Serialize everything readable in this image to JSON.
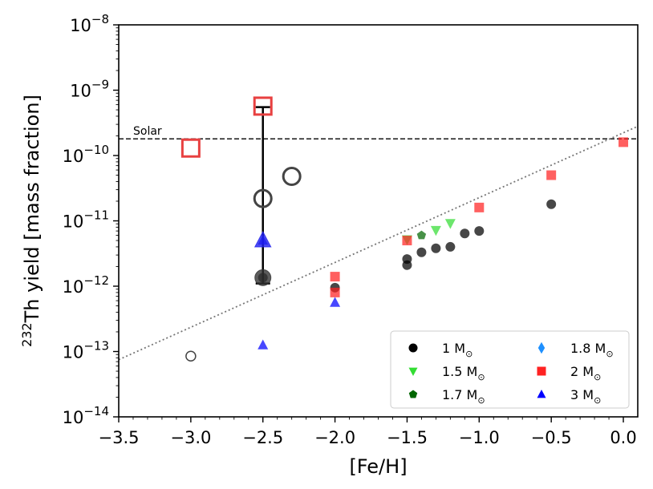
{
  "chart_data": {
    "type": "scatter",
    "x_scale": "linear",
    "y_scale": "log",
    "xlim": [
      -3.5,
      0.1
    ],
    "ylim": [
      1e-14,
      1e-08
    ],
    "xlabel": "[Fe/H]",
    "ylabel_superscript": "232",
    "ylabel_text": "Th yield [mass fraction]",
    "x_ticks": [
      {
        "value": -3.5,
        "label": "−3.5"
      },
      {
        "value": -3.0,
        "label": "−3.0"
      },
      {
        "value": -2.5,
        "label": "−2.5"
      },
      {
        "value": -2.0,
        "label": "−2.0"
      },
      {
        "value": -1.5,
        "label": "−1.5"
      },
      {
        "value": -1.0,
        "label": "−1.0"
      },
      {
        "value": -0.5,
        "label": "−0.5"
      },
      {
        "value": 0.0,
        "label": "0.0"
      }
    ],
    "y_ticks": [
      {
        "exp": -14,
        "base": "10",
        "power": "−14"
      },
      {
        "exp": -13,
        "base": "10",
        "power": "−13"
      },
      {
        "exp": -12,
        "base": "10",
        "power": "−12"
      },
      {
        "exp": -11,
        "base": "10",
        "power": "−11"
      },
      {
        "exp": -10,
        "base": "10",
        "power": "−10"
      },
      {
        "exp": -9,
        "base": "10",
        "power": "−9"
      },
      {
        "exp": -8,
        "base": "10",
        "power": "−8"
      }
    ],
    "solar": {
      "value": 1.8e-10,
      "label": "Solar"
    },
    "trend_line": {
      "points": [
        [
          -3.5,
          7.5e-14
        ],
        [
          0.1,
          2.8e-10
        ]
      ],
      "style": "dotted"
    },
    "error_bar": {
      "x": -2.5,
      "y_low": 1.1e-12,
      "y_high": 5.5e-10
    },
    "series": [
      {
        "name": "1 M",
        "color": "#000000",
        "marker": "circle",
        "points": [
          [
            -2.5,
            1.35e-12
          ],
          [
            -2.0,
            9.5e-13
          ],
          [
            -1.5,
            2.1e-12
          ],
          [
            -1.5,
            2.6e-12
          ],
          [
            -1.4,
            3.3e-12
          ],
          [
            -1.3,
            3.8e-12
          ],
          [
            -1.2,
            4e-12
          ],
          [
            -1.1,
            6.4e-12
          ],
          [
            -1.0,
            7e-12
          ],
          [
            -0.5,
            1.8e-11
          ]
        ]
      },
      {
        "name": "1.5 M",
        "color": "#33dd33",
        "marker": "triangle-down",
        "points": [
          [
            -1.5,
            5.2e-12
          ],
          [
            -1.3,
            7.2e-12
          ],
          [
            -1.2,
            9.2e-12
          ]
        ]
      },
      {
        "name": "1.7 M",
        "color": "#006600",
        "marker": "pentagon",
        "points": [
          [
            -1.4,
            6e-12
          ]
        ]
      },
      {
        "name": "1.8 M",
        "color": "#1e90ff",
        "marker": "diamond",
        "points": []
      },
      {
        "name": "2 M",
        "color": "#ff2222",
        "marker": "square",
        "points": [
          [
            -2.0,
            1.4e-12
          ],
          [
            -2.0,
            8e-13
          ],
          [
            -1.5,
            5e-12
          ],
          [
            -1.0,
            1.6e-11
          ],
          [
            -0.5,
            5e-11
          ],
          [
            0.0,
            1.6e-10
          ]
        ]
      },
      {
        "name": "3 M",
        "color": "#0000ff",
        "marker": "triangle-up",
        "points": [
          [
            -2.5,
            1.25e-13
          ],
          [
            -2.5,
            5e-12
          ],
          [
            -2.0,
            5.6e-13
          ]
        ]
      }
    ],
    "open_markers": [
      {
        "x": -3.0,
        "y": 1.3e-10,
        "marker": "square",
        "color": "#e84040",
        "size": "large"
      },
      {
        "x": -2.5,
        "y": 5.7e-10,
        "marker": "square",
        "color": "#e84040",
        "size": "large"
      },
      {
        "x": -2.5,
        "y": 2.2e-11,
        "marker": "circle",
        "color": "#444444",
        "size": "large"
      },
      {
        "x": -2.3,
        "y": 4.8e-11,
        "marker": "circle",
        "color": "#444444",
        "size": "large"
      },
      {
        "x": -3.0,
        "y": 8.5e-14,
        "marker": "circle",
        "color": "#444444",
        "size": "small"
      }
    ],
    "highlight_markers": [
      {
        "x": -2.5,
        "y": 1.35e-12,
        "marker": "circle",
        "color": "#333333"
      },
      {
        "x": -2.5,
        "y": 5e-12,
        "marker": "triangle-up",
        "color": "#2222ee"
      }
    ],
    "legend": {
      "placement": "lower-right",
      "entries": [
        {
          "label": "1 M",
          "symbol": "⊙",
          "marker": "circle",
          "color": "#000000"
        },
        {
          "label": "1.8 M",
          "symbol": "⊙",
          "marker": "diamond",
          "color": "#1e90ff"
        },
        {
          "label": "1.5 M",
          "symbol": "⊙",
          "marker": "triangle-down",
          "color": "#33dd33"
        },
        {
          "label": "2 M",
          "symbol": "⊙",
          "marker": "square",
          "color": "#ff2222"
        },
        {
          "label": "1.7 M",
          "symbol": "⊙",
          "marker": "pentagon",
          "color": "#006600"
        },
        {
          "label": "3 M",
          "symbol": "⊙",
          "marker": "triangle-up",
          "color": "#0000ff"
        }
      ]
    }
  }
}
